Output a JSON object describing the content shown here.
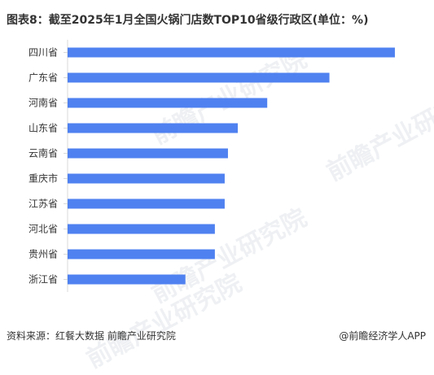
{
  "title": {
    "prefix": "图表8：",
    "text": "截至2025年1月全国火锅门店数TOP10省级行政区(单位：%)"
  },
  "source": "资料来源：红餐大数据 前瞻产业研究院",
  "credit": "@前瞻经济学人APP",
  "watermark": "前瞻产业研究院",
  "colors": {
    "bar": "#4f81f0",
    "axis": "#d9d9d9",
    "label": "#333333"
  },
  "chart_data": {
    "type": "bar",
    "orientation": "horizontal",
    "categories": [
      "四川省",
      "广东省",
      "河南省",
      "山东省",
      "云南省",
      "重庆市",
      "江苏省",
      "河北省",
      "贵州省",
      "浙江省"
    ],
    "values": [
      10.0,
      8.0,
      6.1,
      5.2,
      4.9,
      4.8,
      4.8,
      4.5,
      4.5,
      3.6
    ],
    "xlim": [
      0,
      10.2
    ],
    "grid": false,
    "title": "",
    "xlabel": "",
    "ylabel": ""
  }
}
